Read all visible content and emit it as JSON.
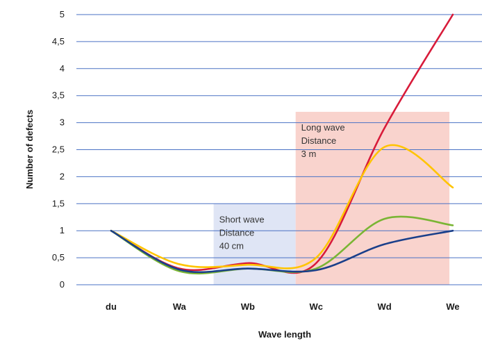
{
  "chart_data": {
    "type": "line",
    "title": "",
    "xlabel": "Wave length",
    "ylabel": "Number of defects",
    "categories": [
      "du",
      "Wa",
      "Wb",
      "Wc",
      "Wd",
      "We"
    ],
    "ylim": [
      0,
      5
    ],
    "yticks": [
      "0",
      "0,5",
      "1",
      "1,5",
      "2",
      "2,5",
      "3",
      "3,5",
      "4",
      "4,5",
      "5"
    ],
    "grid": true,
    "grid_color": "#4a72c4",
    "series": [
      {
        "color": "#d81b3a",
        "values": [
          1,
          0.3,
          0.4,
          0.4,
          2.9,
          5.0
        ]
      },
      {
        "color": "#ffc400",
        "values": [
          1,
          0.38,
          0.37,
          0.5,
          2.55,
          1.8
        ]
      },
      {
        "color": "#7ab534",
        "values": [
          1,
          0.25,
          0.3,
          0.3,
          1.22,
          1.1
        ]
      },
      {
        "color": "#1a3f8a",
        "values": [
          1,
          0.28,
          0.3,
          0.27,
          0.75,
          1.0
        ]
      }
    ],
    "regions": [
      {
        "label_lines": [
          "Short wave",
          "Distance",
          "40 cm"
        ],
        "color": "#dfe5f5",
        "x_from": 1.5,
        "x_to": 2.7,
        "y_to": 1.5
      },
      {
        "label_lines": [
          "Long wave",
          "Distance",
          "3 m"
        ],
        "color": "#f9d3cd",
        "x_from": 2.7,
        "x_to": 4.95,
        "y_to": 3.2
      }
    ]
  }
}
